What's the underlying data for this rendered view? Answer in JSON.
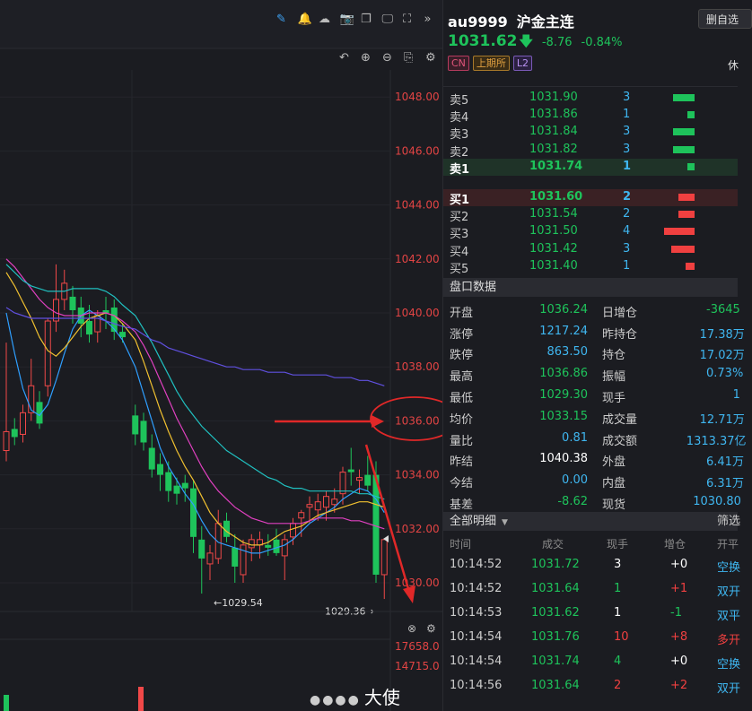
{
  "toolbar_icons": [
    "pencil-icon",
    "bell-icon",
    "cloud-icon",
    "camera-icon",
    "copy-icon",
    "monitor-icon",
    "fullscreen-icon",
    "double-chevron-right-icon"
  ],
  "chart_tools": [
    "undo-icon",
    "zoom-in-icon",
    "zoom-out-icon",
    "save-icon",
    "settings-icon"
  ],
  "chart_data": {
    "type": "candlestick",
    "price_axis_ticks": [
      "1048.00",
      "1046.00",
      "1044.00",
      "1042.00",
      "1040.00",
      "1038.00",
      "1036.00",
      "1034.00",
      "1032.00",
      "1030.00"
    ],
    "y_range": [
      1029.6,
      1049.4
    ],
    "low_label": "←1029.54",
    "low_value": 1029.54,
    "low_label_2": "1029.36→",
    "low_value_2": 1029.36,
    "volume_ticks": [
      "17658.0",
      "14715.0"
    ],
    "candles": [
      {
        "o": 1034.9,
        "h": 1038.9,
        "l": 1034.5,
        "c": 1035.6,
        "up": true
      },
      {
        "o": 1035.7,
        "h": 1036.1,
        "l": 1035.1,
        "c": 1035.4,
        "up": false
      },
      {
        "o": 1035.5,
        "h": 1036.6,
        "l": 1035.2,
        "c": 1036.3,
        "up": true
      },
      {
        "o": 1036.3,
        "h": 1038.3,
        "l": 1036.0,
        "c": 1037.3,
        "up": true
      },
      {
        "o": 1036.7,
        "h": 1037.1,
        "l": 1035.7,
        "c": 1035.9,
        "up": false
      },
      {
        "o": 1037.3,
        "h": 1039.8,
        "l": 1036.9,
        "c": 1039.7,
        "up": true
      },
      {
        "o": 1039.7,
        "h": 1041.8,
        "l": 1039.3,
        "c": 1040.5,
        "up": true
      },
      {
        "o": 1040.5,
        "h": 1041.6,
        "l": 1040.1,
        "c": 1041.1,
        "up": true
      },
      {
        "o": 1040.6,
        "h": 1041.0,
        "l": 1039.6,
        "c": 1040.1,
        "up": false
      },
      {
        "o": 1040.2,
        "h": 1040.6,
        "l": 1039.1,
        "c": 1039.6,
        "up": false
      },
      {
        "o": 1039.7,
        "h": 1040.3,
        "l": 1038.9,
        "c": 1039.2,
        "up": false
      },
      {
        "o": 1039.3,
        "h": 1040.1,
        "l": 1038.9,
        "c": 1039.9,
        "up": true
      },
      {
        "o": 1040.1,
        "h": 1040.6,
        "l": 1039.4,
        "c": 1040.0,
        "up": false
      },
      {
        "o": 1040.2,
        "h": 1040.5,
        "l": 1039.0,
        "c": 1039.3,
        "up": false
      },
      {
        "o": 1039.3,
        "h": 1039.6,
        "l": 1038.9,
        "c": 1039.1,
        "up": false
      },
      {
        "o": 1036.2,
        "h": 1036.6,
        "l": 1035.1,
        "c": 1035.5,
        "up": false
      },
      {
        "o": 1036.0,
        "h": 1036.3,
        "l": 1034.9,
        "c": 1035.2,
        "up": false
      },
      {
        "o": 1035.0,
        "h": 1035.5,
        "l": 1033.9,
        "c": 1034.2,
        "up": false
      },
      {
        "o": 1034.4,
        "h": 1034.8,
        "l": 1033.4,
        "c": 1034.0,
        "up": false
      },
      {
        "o": 1034.1,
        "h": 1034.5,
        "l": 1033.0,
        "c": 1033.4,
        "up": false
      },
      {
        "o": 1033.6,
        "h": 1033.9,
        "l": 1032.9,
        "c": 1033.3,
        "up": false
      },
      {
        "o": 1033.7,
        "h": 1034.0,
        "l": 1033.0,
        "c": 1033.5,
        "up": false
      },
      {
        "o": 1033.5,
        "h": 1033.8,
        "l": 1031.1,
        "c": 1031.7,
        "up": false
      },
      {
        "o": 1031.6,
        "h": 1032.1,
        "l": 1029.6,
        "c": 1030.9,
        "up": false
      },
      {
        "o": 1030.7,
        "h": 1031.4,
        "l": 1030.1,
        "c": 1031.1,
        "up": true
      },
      {
        "o": 1030.9,
        "h": 1032.7,
        "l": 1030.7,
        "c": 1032.2,
        "up": true
      },
      {
        "o": 1032.3,
        "h": 1032.6,
        "l": 1031.5,
        "c": 1031.7,
        "up": false
      },
      {
        "o": 1031.3,
        "h": 1031.8,
        "l": 1030.0,
        "c": 1030.6,
        "up": false
      },
      {
        "o": 1030.3,
        "h": 1031.6,
        "l": 1030.0,
        "c": 1031.4,
        "up": true
      },
      {
        "o": 1031.3,
        "h": 1031.8,
        "l": 1030.8,
        "c": 1031.6,
        "up": true
      },
      {
        "o": 1031.4,
        "h": 1031.9,
        "l": 1030.9,
        "c": 1031.6,
        "up": true
      },
      {
        "o": 1031.4,
        "h": 1031.8,
        "l": 1031.0,
        "c": 1031.3,
        "up": false
      },
      {
        "o": 1031.6,
        "h": 1032.0,
        "l": 1031.0,
        "c": 1031.1,
        "up": false
      },
      {
        "o": 1031.0,
        "h": 1031.8,
        "l": 1030.1,
        "c": 1031.6,
        "up": true
      },
      {
        "o": 1031.7,
        "h": 1032.4,
        "l": 1031.4,
        "c": 1032.2,
        "up": true
      },
      {
        "o": 1032.4,
        "h": 1032.7,
        "l": 1031.7,
        "c": 1032.6,
        "up": true
      },
      {
        "o": 1032.8,
        "h": 1033.2,
        "l": 1032.2,
        "c": 1032.9,
        "up": true
      },
      {
        "o": 1032.7,
        "h": 1033.3,
        "l": 1032.3,
        "c": 1033.0,
        "up": true
      },
      {
        "o": 1032.8,
        "h": 1033.4,
        "l": 1032.3,
        "c": 1033.2,
        "up": true
      },
      {
        "o": 1033.1,
        "h": 1033.5,
        "l": 1032.6,
        "c": 1032.9,
        "up": true
      },
      {
        "o": 1033.3,
        "h": 1034.3,
        "l": 1032.9,
        "c": 1034.1,
        "up": true
      },
      {
        "o": 1034.2,
        "h": 1035.0,
        "l": 1033.6,
        "c": 1034.1,
        "up": false
      },
      {
        "o": 1033.8,
        "h": 1034.2,
        "l": 1033.3,
        "c": 1033.9,
        "up": true
      },
      {
        "o": 1034.0,
        "h": 1034.7,
        "l": 1033.4,
        "c": 1033.6,
        "up": false
      },
      {
        "o": 1034.0,
        "h": 1034.5,
        "l": 1030.0,
        "c": 1030.3,
        "up": false
      },
      {
        "o": 1030.3,
        "h": 1031.6,
        "l": 1029.4,
        "c": 1031.6,
        "up": true
      }
    ],
    "ma_lines": [
      {
        "color": "#2f9fff",
        "values": [
          1040,
          1038.5,
          1037.2,
          1036.4,
          1036.2,
          1036.6,
          1037.5,
          1038.5,
          1039.4,
          1039.9,
          1040.1,
          1039.9,
          1039.7,
          1039.4,
          1039.0,
          1038.0,
          1037.0,
          1036.0,
          1035.0,
          1034.3,
          1033.8,
          1033.3,
          1032.9,
          1032.3,
          1031.8,
          1031.5,
          1031.4,
          1031.3,
          1031.2,
          1031.1,
          1031.1,
          1031.2,
          1031.3,
          1031.4,
          1031.6,
          1031.9,
          1032.2,
          1032.4,
          1032.6,
          1032.8,
          1033.1,
          1033.3,
          1033.5,
          1033.4,
          1033.1,
          1032.6
        ]
      },
      {
        "color": "#f0c030",
        "values": [
          1041.5,
          1041,
          1040.4,
          1039.8,
          1039.1,
          1038.6,
          1038.4,
          1038.7,
          1039.1,
          1039.5,
          1039.8,
          1039.9,
          1040.0,
          1039.9,
          1039.6,
          1039.0,
          1038.2,
          1037.3,
          1036.4,
          1035.6,
          1034.9,
          1034.3,
          1033.8,
          1033.2,
          1032.6,
          1032.2,
          1031.9,
          1031.7,
          1031.5,
          1031.4,
          1031.4,
          1031.5,
          1031.7,
          1031.9,
          1032.0,
          1032.1,
          1032.3,
          1032.5,
          1032.6,
          1032.7,
          1032.8,
          1032.9,
          1033.0,
          1033.0,
          1032.9,
          1032.8
        ]
      },
      {
        "color": "#e040c0",
        "values": [
          1042,
          1041.7,
          1041.3,
          1040.9,
          1040.5,
          1040.2,
          1040.0,
          1039.9,
          1039.9,
          1039.9,
          1040.0,
          1040.0,
          1040.0,
          1039.9,
          1039.7,
          1039.3,
          1038.8,
          1038.2,
          1037.5,
          1036.8,
          1036.1,
          1035.5,
          1034.9,
          1034.3,
          1033.8,
          1033.4,
          1033.1,
          1032.8,
          1032.6,
          1032.4,
          1032.3,
          1032.2,
          1032.2,
          1032.2,
          1032.2,
          1032.2,
          1032.3,
          1032.4,
          1032.4,
          1032.4,
          1032.4,
          1032.3,
          1032.3,
          1032.2,
          1032.1,
          1032.0
        ]
      },
      {
        "color": "#20c0c0",
        "values": [
          1041.8,
          1041.5,
          1041.2,
          1041.0,
          1040.9,
          1040.8,
          1040.8,
          1040.8,
          1040.9,
          1040.9,
          1040.9,
          1040.9,
          1040.8,
          1040.6,
          1040.3,
          1039.9,
          1039.4,
          1038.9,
          1038.3,
          1037.7,
          1037.1,
          1036.6,
          1036.2,
          1035.8,
          1035.5,
          1035.2,
          1034.9,
          1034.7,
          1034.5,
          1034.3,
          1034.1,
          1033.9,
          1033.8,
          1033.6,
          1033.5,
          1033.5,
          1033.4,
          1033.4,
          1033.4,
          1033.4,
          1033.4,
          1033.4,
          1033.3,
          1033.3,
          1033.2,
          1033.1
        ]
      },
      {
        "color": "#6050e0",
        "values": [
          1040.2,
          1040.0,
          1039.9,
          1039.8,
          1039.8,
          1039.8,
          1039.8,
          1039.8,
          1039.8,
          1039.8,
          1039.8,
          1039.8,
          1039.7,
          1039.6,
          1039.5,
          1039.4,
          1039.2,
          1039.0,
          1038.9,
          1038.7,
          1038.6,
          1038.5,
          1038.4,
          1038.3,
          1038.2,
          1038.1,
          1038.0,
          1038.0,
          1037.9,
          1037.9,
          1037.9,
          1037.8,
          1037.8,
          1037.8,
          1037.7,
          1037.7,
          1037.7,
          1037.7,
          1037.7,
          1037.6,
          1037.6,
          1037.6,
          1037.5,
          1037.5,
          1037.4,
          1037.3
        ]
      }
    ],
    "volume_bars": [
      {
        "v": 0.6,
        "up": false
      },
      {
        "v": 0.9,
        "up": true
      }
    ]
  },
  "header": {
    "symbol": "au9999",
    "name": "沪金主连",
    "delete_btn": "删自选",
    "price": "1031.62",
    "change": "-8.76",
    "change_pct": "-0.84%",
    "tags": [
      "CN",
      "上期所",
      "L2"
    ],
    "status": "休"
  },
  "asks": [
    {
      "label": "卖5",
      "price": "1031.90",
      "qty": "3",
      "bar": 0.6
    },
    {
      "label": "卖4",
      "price": "1031.86",
      "qty": "1",
      "bar": 0.2
    },
    {
      "label": "卖3",
      "price": "1031.84",
      "qty": "3",
      "bar": 0.6
    },
    {
      "label": "卖2",
      "price": "1031.82",
      "qty": "3",
      "bar": 0.6
    },
    {
      "label": "卖1",
      "price": "1031.74",
      "qty": "1",
      "bar": 0.2
    }
  ],
  "bids": [
    {
      "label": "买1",
      "price": "1031.60",
      "qty": "2",
      "bar": 0.45
    },
    {
      "label": "买2",
      "price": "1031.54",
      "qty": "2",
      "bar": 0.45
    },
    {
      "label": "买3",
      "price": "1031.50",
      "qty": "4",
      "bar": 0.85
    },
    {
      "label": "买4",
      "price": "1031.42",
      "qty": "3",
      "bar": 0.65
    },
    {
      "label": "买5",
      "price": "1031.40",
      "qty": "1",
      "bar": 0.25
    }
  ],
  "stats_title": "盘口数据",
  "stats": [
    {
      "l1": "开盘",
      "v1": "1036.24",
      "c1": "#1ec35b",
      "l2": "日增仓",
      "v2": "-3645",
      "c2": "#1ec35b"
    },
    {
      "l1": "涨停",
      "v1": "1217.24",
      "c1": "#3fb6f0",
      "l2": "昨持仓",
      "v2": "17.38万",
      "c2": "#3fb6f0"
    },
    {
      "l1": "跌停",
      "v1": "863.50",
      "c1": "#3fb6f0",
      "l2": "持仓",
      "v2": "17.02万",
      "c2": "#3fb6f0"
    },
    {
      "l1": "最高",
      "v1": "1036.86",
      "c1": "#1ec35b",
      "l2": "振幅",
      "v2": "0.73%",
      "c2": "#3fb6f0"
    },
    {
      "l1": "最低",
      "v1": "1029.30",
      "c1": "#1ec35b",
      "l2": "现手",
      "v2": "1",
      "c2": "#3fb6f0"
    },
    {
      "l1": "均价",
      "v1": "1033.15",
      "c1": "#1ec35b",
      "l2": "成交量",
      "v2": "12.71万",
      "c2": "#3fb6f0"
    },
    {
      "l1": "量比",
      "v1": "0.81",
      "c1": "#3fb6f0",
      "l2": "成交额",
      "v2": "1313.37亿",
      "c2": "#3fb6f0"
    },
    {
      "l1": "昨结",
      "v1": "1040.38",
      "c1": "#ffffff",
      "l2": "外盘",
      "v2": "6.41万",
      "c2": "#3fb6f0"
    },
    {
      "l1": "今结",
      "v1": "0.00",
      "c1": "#3fb6f0",
      "l2": "内盘",
      "v2": "6.31万",
      "c2": "#3fb6f0"
    },
    {
      "l1": "基差",
      "v1": "-8.62",
      "c1": "#1ec35b",
      "l2": "现货",
      "v2": "1030.80",
      "c2": "#3fb6f0"
    }
  ],
  "trades_title": "全部明细",
  "trades_filter": "筛选",
  "trades_header": [
    "时间",
    "成交",
    "现手",
    "增仓",
    "开平"
  ],
  "trades": [
    {
      "time": "10:14:52",
      "price": "1031.72",
      "qty": "3",
      "qc": "#ffffff",
      "chg": "+0",
      "cc": "#ffffff",
      "type": "空换",
      "tc": "#3fb6f0"
    },
    {
      "time": "10:14:52",
      "price": "1031.64",
      "qty": "1",
      "qc": "#1ec35b",
      "chg": "+1",
      "cc": "#f04040",
      "type": "双开",
      "tc": "#3fb6f0"
    },
    {
      "time": "10:14:53",
      "price": "1031.62",
      "qty": "1",
      "qc": "#ffffff",
      "chg": "-1",
      "cc": "#1ec35b",
      "type": "双平",
      "tc": "#3fb6f0"
    },
    {
      "time": "10:14:54",
      "price": "1031.76",
      "qty": "10",
      "qc": "#f04040",
      "chg": "+8",
      "cc": "#f04040",
      "type": "多开",
      "tc": "#f04040"
    },
    {
      "time": "10:14:54",
      "price": "1031.74",
      "qty": "4",
      "qc": "#1ec35b",
      "chg": "+0",
      "cc": "#ffffff",
      "type": "空换",
      "tc": "#3fb6f0"
    },
    {
      "time": "10:14:56",
      "price": "1031.64",
      "qty": "2",
      "qc": "#f04040",
      "chg": "+2",
      "cc": "#f04040",
      "type": "双开",
      "tc": "#3fb6f0"
    }
  ],
  "watermark": "大使"
}
